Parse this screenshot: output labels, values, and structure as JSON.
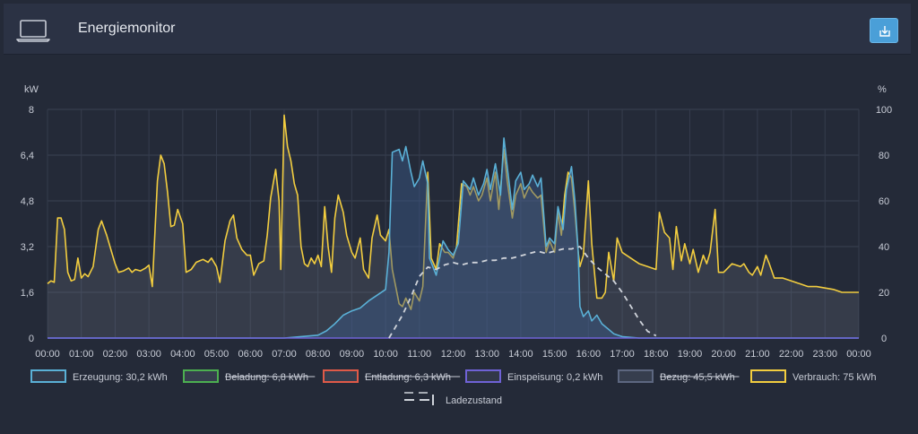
{
  "header": {
    "title": "Energiemonitor",
    "icon": "laptop-icon",
    "download_icon": "download-icon"
  },
  "chart_data": {
    "type": "line",
    "y_left_unit": "kW",
    "y_right_unit": "%",
    "y_left_ticks": [
      "0",
      "1,6",
      "3,2",
      "4,8",
      "6,4",
      "8"
    ],
    "y_right_ticks": [
      "0",
      "20",
      "40",
      "60",
      "80",
      "100"
    ],
    "ylim": [
      0,
      8
    ],
    "ylim_right": [
      0,
      100
    ],
    "x_ticks": [
      "00:00",
      "01:00",
      "02:00",
      "03:00",
      "04:00",
      "05:00",
      "06:00",
      "07:00",
      "08:00",
      "09:00",
      "10:00",
      "11:00",
      "12:00",
      "13:00",
      "14:00",
      "15:00",
      "16:00",
      "17:00",
      "18:00",
      "19:00",
      "20:00",
      "21:00",
      "22:00",
      "23:00",
      "00:00"
    ],
    "grid": true,
    "series": [
      {
        "name": "Erzeugung: 30,2 kWh",
        "color": "#5ab0d6",
        "filled": true,
        "points": [
          [
            0,
            0
          ],
          [
            7,
            0
          ],
          [
            7.5,
            0.05
          ],
          [
            8,
            0.1
          ],
          [
            8.25,
            0.25
          ],
          [
            8.5,
            0.5
          ],
          [
            8.75,
            0.8
          ],
          [
            9,
            0.95
          ],
          [
            9.25,
            1.05
          ],
          [
            9.5,
            1.3
          ],
          [
            9.75,
            1.5
          ],
          [
            10,
            1.7
          ],
          [
            10.1,
            3.0
          ],
          [
            10.2,
            6.5
          ],
          [
            10.4,
            6.6
          ],
          [
            10.5,
            6.2
          ],
          [
            10.6,
            6.7
          ],
          [
            10.75,
            5.8
          ],
          [
            10.85,
            5.3
          ],
          [
            11,
            5.6
          ],
          [
            11.1,
            6.2
          ],
          [
            11.25,
            5.4
          ],
          [
            11.3,
            2.8
          ],
          [
            11.5,
            2.2
          ],
          [
            11.7,
            3.4
          ],
          [
            11.85,
            3.1
          ],
          [
            12,
            2.9
          ],
          [
            12.15,
            3.3
          ],
          [
            12.3,
            5.5
          ],
          [
            12.5,
            5.2
          ],
          [
            12.6,
            5.6
          ],
          [
            12.75,
            5.0
          ],
          [
            12.9,
            5.4
          ],
          [
            13,
            5.9
          ],
          [
            13.1,
            5.2
          ],
          [
            13.25,
            6.1
          ],
          [
            13.4,
            5.0
          ],
          [
            13.5,
            7.0
          ],
          [
            13.6,
            6.0
          ],
          [
            13.75,
            4.5
          ],
          [
            13.85,
            5.5
          ],
          [
            14,
            5.8
          ],
          [
            14.1,
            5.2
          ],
          [
            14.25,
            5.4
          ],
          [
            14.35,
            5.7
          ],
          [
            14.5,
            5.3
          ],
          [
            14.6,
            5.6
          ],
          [
            14.75,
            3.2
          ],
          [
            14.85,
            3.5
          ],
          [
            15,
            3.3
          ],
          [
            15.1,
            4.6
          ],
          [
            15.25,
            3.8
          ],
          [
            15.35,
            5.2
          ],
          [
            15.5,
            6.0
          ],
          [
            15.6,
            4.8
          ],
          [
            15.7,
            3.0
          ],
          [
            15.75,
            1.1
          ],
          [
            15.85,
            0.75
          ],
          [
            16,
            0.95
          ],
          [
            16.1,
            0.6
          ],
          [
            16.25,
            0.8
          ],
          [
            16.4,
            0.5
          ],
          [
            16.6,
            0.3
          ],
          [
            16.75,
            0.15
          ],
          [
            17,
            0.05
          ],
          [
            17.5,
            0
          ],
          [
            24,
            0
          ]
        ]
      },
      {
        "name": "Beladung: 6,8 kWh",
        "color": "#4caf50",
        "hidden": true,
        "points": []
      },
      {
        "name": "Entladung: 6,3 kWh",
        "color": "#e05a48",
        "hidden": true,
        "points": []
      },
      {
        "name": "Einspeisung: 0,2 kWh",
        "color": "#6f62d6",
        "filled": false,
        "points": [
          [
            0,
            0
          ],
          [
            24,
            0
          ]
        ]
      },
      {
        "name": "Bezug: 45,5 kWh",
        "color": "#5d6780",
        "hidden": true,
        "points": []
      },
      {
        "name": "Verbrauch: 75 kWh",
        "color": "#f2cd3f",
        "filled": true,
        "points": [
          [
            0,
            1.9
          ],
          [
            0.1,
            2.0
          ],
          [
            0.2,
            1.95
          ],
          [
            0.3,
            4.2
          ],
          [
            0.4,
            4.2
          ],
          [
            0.5,
            3.8
          ],
          [
            0.6,
            2.3
          ],
          [
            0.7,
            2.0
          ],
          [
            0.8,
            2.05
          ],
          [
            0.9,
            2.8
          ],
          [
            1.0,
            2.1
          ],
          [
            1.1,
            2.25
          ],
          [
            1.2,
            2.15
          ],
          [
            1.35,
            2.5
          ],
          [
            1.5,
            3.8
          ],
          [
            1.6,
            4.1
          ],
          [
            1.75,
            3.6
          ],
          [
            1.9,
            3.0
          ],
          [
            2.0,
            2.6
          ],
          [
            2.1,
            2.3
          ],
          [
            2.25,
            2.35
          ],
          [
            2.4,
            2.45
          ],
          [
            2.5,
            2.3
          ],
          [
            2.6,
            2.4
          ],
          [
            2.75,
            2.35
          ],
          [
            2.9,
            2.45
          ],
          [
            3.0,
            2.55
          ],
          [
            3.1,
            1.8
          ],
          [
            3.25,
            5.5
          ],
          [
            3.35,
            6.4
          ],
          [
            3.45,
            6.1
          ],
          [
            3.55,
            5.1
          ],
          [
            3.65,
            3.9
          ],
          [
            3.75,
            3.95
          ],
          [
            3.85,
            4.5
          ],
          [
            4.0,
            4.0
          ],
          [
            4.1,
            2.3
          ],
          [
            4.25,
            2.4
          ],
          [
            4.4,
            2.65
          ],
          [
            4.5,
            2.7
          ],
          [
            4.6,
            2.75
          ],
          [
            4.75,
            2.65
          ],
          [
            4.85,
            2.8
          ],
          [
            5.0,
            2.5
          ],
          [
            5.1,
            1.95
          ],
          [
            5.25,
            3.4
          ],
          [
            5.4,
            4.1
          ],
          [
            5.5,
            4.3
          ],
          [
            5.6,
            3.5
          ],
          [
            5.75,
            3.1
          ],
          [
            5.9,
            2.9
          ],
          [
            6.0,
            2.9
          ],
          [
            6.1,
            2.2
          ],
          [
            6.25,
            2.6
          ],
          [
            6.4,
            2.7
          ],
          [
            6.5,
            3.6
          ],
          [
            6.6,
            4.9
          ],
          [
            6.75,
            5.9
          ],
          [
            6.85,
            4.8
          ],
          [
            6.9,
            2.4
          ],
          [
            7.0,
            7.8
          ],
          [
            7.1,
            6.7
          ],
          [
            7.2,
            6.2
          ],
          [
            7.3,
            5.4
          ],
          [
            7.4,
            5.0
          ],
          [
            7.5,
            3.2
          ],
          [
            7.6,
            2.6
          ],
          [
            7.7,
            2.5
          ],
          [
            7.8,
            2.8
          ],
          [
            7.9,
            2.6
          ],
          [
            8.0,
            2.9
          ],
          [
            8.1,
            2.5
          ],
          [
            8.2,
            4.6
          ],
          [
            8.3,
            3.2
          ],
          [
            8.4,
            2.3
          ],
          [
            8.5,
            4.2
          ],
          [
            8.6,
            5.0
          ],
          [
            8.75,
            4.4
          ],
          [
            8.85,
            3.6
          ],
          [
            9.0,
            3.0
          ],
          [
            9.1,
            2.8
          ],
          [
            9.25,
            3.5
          ],
          [
            9.35,
            2.4
          ],
          [
            9.5,
            2.1
          ],
          [
            9.6,
            3.5
          ],
          [
            9.75,
            4.3
          ],
          [
            9.85,
            3.6
          ],
          [
            10.0,
            3.4
          ],
          [
            10.1,
            3.8
          ],
          [
            10.2,
            2.4
          ],
          [
            10.3,
            1.8
          ],
          [
            10.4,
            1.2
          ],
          [
            10.5,
            1.1
          ],
          [
            10.6,
            1.4
          ],
          [
            10.75,
            1.0
          ],
          [
            10.85,
            1.6
          ],
          [
            11.0,
            1.3
          ],
          [
            11.1,
            1.8
          ],
          [
            11.25,
            5.8
          ],
          [
            11.35,
            2.8
          ],
          [
            11.5,
            2.4
          ],
          [
            11.6,
            3.3
          ],
          [
            11.75,
            3.0
          ],
          [
            11.85,
            3.0
          ],
          [
            12.0,
            2.8
          ],
          [
            12.1,
            3.2
          ],
          [
            12.25,
            5.4
          ],
          [
            12.4,
            5.3
          ],
          [
            12.5,
            5.0
          ],
          [
            12.6,
            5.3
          ],
          [
            12.75,
            4.8
          ],
          [
            12.85,
            5.0
          ],
          [
            13.0,
            5.6
          ],
          [
            13.1,
            4.8
          ],
          [
            13.25,
            5.8
          ],
          [
            13.35,
            4.5
          ],
          [
            13.5,
            6.6
          ],
          [
            13.6,
            5.5
          ],
          [
            13.75,
            4.2
          ],
          [
            13.85,
            5.0
          ],
          [
            14.0,
            5.4
          ],
          [
            14.1,
            4.9
          ],
          [
            14.25,
            5.3
          ],
          [
            14.35,
            5.1
          ],
          [
            14.5,
            4.9
          ],
          [
            14.6,
            5.0
          ],
          [
            14.75,
            3.0
          ],
          [
            14.85,
            3.4
          ],
          [
            15.0,
            3.0
          ],
          [
            15.1,
            4.4
          ],
          [
            15.2,
            3.6
          ],
          [
            15.3,
            5.0
          ],
          [
            15.4,
            5.8
          ],
          [
            15.5,
            5.6
          ],
          [
            15.6,
            4.4
          ],
          [
            15.7,
            3.0
          ],
          [
            15.75,
            2.5
          ],
          [
            15.85,
            2.9
          ],
          [
            16.0,
            5.5
          ],
          [
            16.1,
            3.3
          ],
          [
            16.25,
            1.4
          ],
          [
            16.4,
            1.4
          ],
          [
            16.5,
            1.6
          ],
          [
            16.6,
            3.0
          ],
          [
            16.75,
            2.0
          ],
          [
            16.85,
            3.5
          ],
          [
            17.0,
            3.0
          ],
          [
            17.25,
            2.8
          ],
          [
            17.5,
            2.6
          ],
          [
            17.75,
            2.5
          ],
          [
            18.0,
            2.4
          ],
          [
            18.1,
            4.4
          ],
          [
            18.25,
            3.7
          ],
          [
            18.4,
            3.5
          ],
          [
            18.5,
            2.4
          ],
          [
            18.6,
            3.9
          ],
          [
            18.75,
            2.7
          ],
          [
            18.85,
            3.3
          ],
          [
            19.0,
            2.6
          ],
          [
            19.1,
            3.1
          ],
          [
            19.25,
            2.3
          ],
          [
            19.4,
            2.9
          ],
          [
            19.5,
            2.6
          ],
          [
            19.6,
            3.0
          ],
          [
            19.75,
            4.5
          ],
          [
            19.85,
            2.3
          ],
          [
            20.0,
            2.3
          ],
          [
            20.25,
            2.6
          ],
          [
            20.5,
            2.5
          ],
          [
            20.6,
            2.6
          ],
          [
            20.75,
            2.3
          ],
          [
            20.85,
            2.2
          ],
          [
            21.0,
            2.5
          ],
          [
            21.1,
            2.2
          ],
          [
            21.25,
            2.9
          ],
          [
            21.35,
            2.6
          ],
          [
            21.5,
            2.1
          ],
          [
            21.75,
            2.1
          ],
          [
            22.0,
            2.0
          ],
          [
            22.25,
            1.9
          ],
          [
            22.5,
            1.8
          ],
          [
            22.75,
            1.8
          ],
          [
            23.0,
            1.75
          ],
          [
            23.25,
            1.7
          ],
          [
            23.5,
            1.6
          ],
          [
            23.75,
            1.6
          ],
          [
            24.0,
            1.6
          ]
        ]
      },
      {
        "name": "Ladezustand",
        "color": "#cfd3da",
        "dashed": true,
        "axis": "right",
        "points": [
          [
            10.1,
            0
          ],
          [
            10.3,
            5
          ],
          [
            10.5,
            10
          ],
          [
            10.75,
            18
          ],
          [
            11,
            27
          ],
          [
            11.25,
            31
          ],
          [
            11.5,
            30
          ],
          [
            11.75,
            32
          ],
          [
            12,
            33
          ],
          [
            12.25,
            32
          ],
          [
            12.5,
            33
          ],
          [
            12.75,
            33
          ],
          [
            13,
            34
          ],
          [
            13.25,
            34
          ],
          [
            13.5,
            35
          ],
          [
            13.75,
            35
          ],
          [
            14,
            36
          ],
          [
            14.25,
            37
          ],
          [
            14.5,
            38
          ],
          [
            14.75,
            37
          ],
          [
            15,
            38
          ],
          [
            15.25,
            39
          ],
          [
            15.5,
            39
          ],
          [
            15.75,
            40
          ],
          [
            16,
            35
          ],
          [
            16.25,
            31
          ],
          [
            16.5,
            28
          ],
          [
            16.75,
            25
          ],
          [
            17,
            20
          ],
          [
            17.25,
            14
          ],
          [
            17.5,
            8
          ],
          [
            17.75,
            3
          ],
          [
            18,
            1
          ]
        ]
      }
    ]
  }
}
